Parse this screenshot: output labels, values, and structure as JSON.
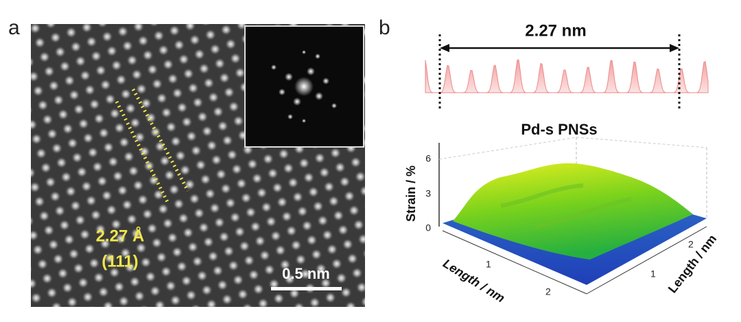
{
  "panel_a": {
    "label": "a",
    "d_spacing": "2.27 Å",
    "plane": "(111)",
    "scale_bar": "0.5 nm"
  },
  "panel_b": {
    "label": "b",
    "distance": "2.27 nm",
    "title": "Pd-s PNSs",
    "z_axis": {
      "label": "Strain / %",
      "ticks": [
        "6",
        "3",
        "0"
      ]
    },
    "x_axis": {
      "label": "Length / nm",
      "ticks": [
        "1",
        "2"
      ]
    },
    "y_axis": {
      "label": "Length / nm",
      "ticks": [
        "1",
        "2"
      ]
    }
  }
}
